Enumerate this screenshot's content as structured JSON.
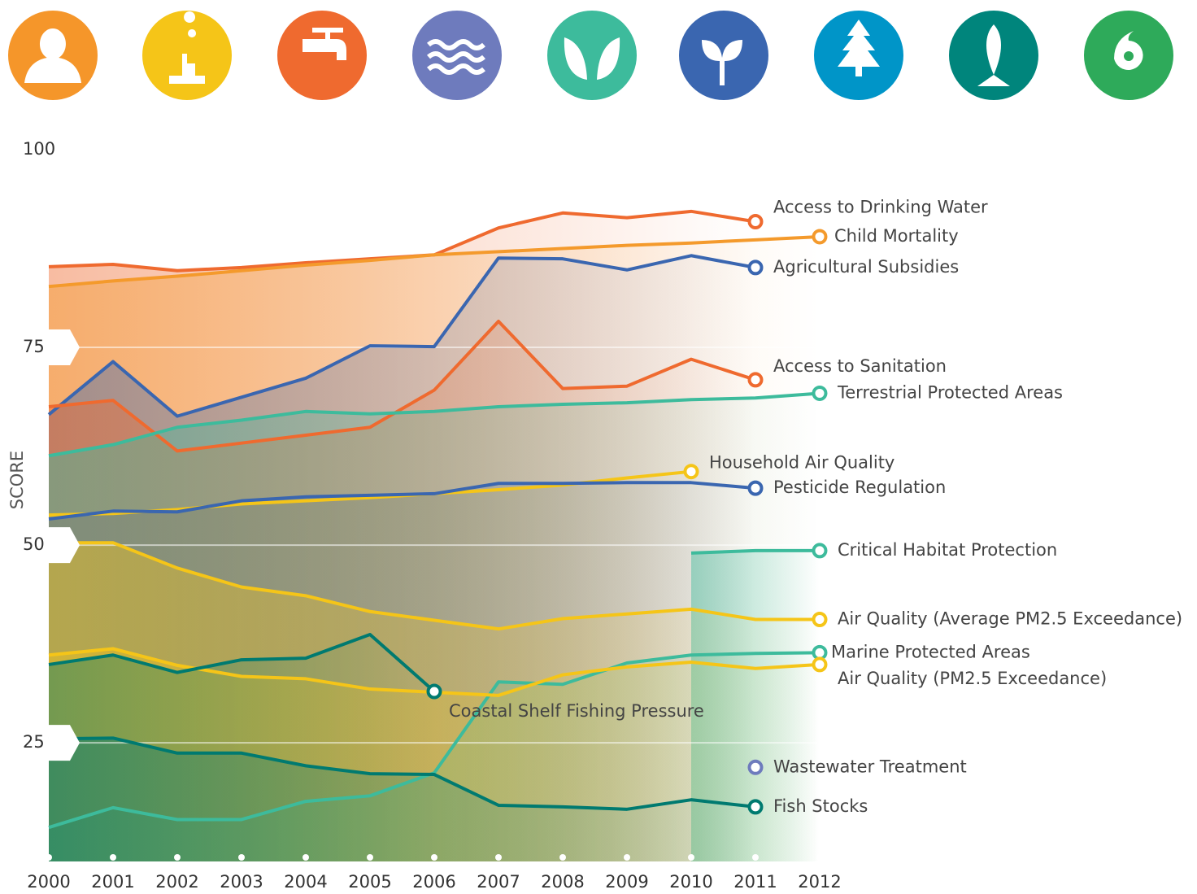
{
  "chart_data": {
    "type": "line",
    "y_label": "SCORE",
    "x": [
      2000,
      2001,
      2002,
      2003,
      2004,
      2005,
      2006,
      2007,
      2008,
      2009,
      2010,
      2011,
      2012
    ],
    "xlim": [
      2000,
      2012
    ],
    "ylim": [
      10,
      100
    ],
    "yticks": [
      25,
      50,
      75,
      100
    ],
    "grid": true,
    "series": [
      {
        "name": "Access to Drinking Water",
        "color": "#ef6a2f",
        "values": [
          85.2,
          85.5,
          84.7,
          85.1,
          85.7,
          86.2,
          86.7,
          90.1,
          92.0,
          91.4,
          92.2,
          90.9,
          null
        ]
      },
      {
        "name": "Child Mortality",
        "color": "#f49a2c",
        "values": [
          82.7,
          83.4,
          84.0,
          84.7,
          85.4,
          86.0,
          86.7,
          87.1,
          87.5,
          87.9,
          88.2,
          88.6,
          89.0
        ]
      },
      {
        "name": "Agricultural Subsidies",
        "color": "#3a66b0",
        "values": [
          66.5,
          73.2,
          66.3,
          68.7,
          71.1,
          75.2,
          75.1,
          86.3,
          86.2,
          84.8,
          86.6,
          85.1,
          null
        ]
      },
      {
        "name": "Access to Sanitation",
        "color": "#ef6a2f",
        "values": [
          67.5,
          68.3,
          61.9,
          62.9,
          63.9,
          64.9,
          69.6,
          78.3,
          69.8,
          70.1,
          73.5,
          70.9,
          null
        ]
      },
      {
        "name": "Terrestrial Protected Areas",
        "color": "#3dbb9c",
        "values": [
          61.3,
          62.7,
          64.9,
          65.8,
          66.9,
          66.6,
          66.9,
          67.5,
          67.8,
          68.0,
          68.4,
          68.6,
          69.2
        ]
      },
      {
        "name": "Household Air Quality",
        "color": "#f5c518",
        "values": [
          53.8,
          54.0,
          54.5,
          55.2,
          55.6,
          56.0,
          56.5,
          57.0,
          57.6,
          58.5,
          59.3,
          null,
          null
        ]
      },
      {
        "name": "Pesticide Regulation",
        "color": "#3a66b0",
        "values": [
          53.3,
          54.3,
          54.2,
          55.6,
          56.1,
          56.3,
          56.5,
          57.8,
          57.8,
          57.9,
          57.9,
          57.2,
          null
        ]
      },
      {
        "name": "Critical Habitat Protection",
        "color": "#3dbb9c",
        "values": [
          null,
          null,
          null,
          null,
          null,
          null,
          null,
          null,
          null,
          null,
          49.0,
          49.3,
          49.3
        ]
      },
      {
        "name": "Air Quality (Average PM2.5 Exceedance)",
        "color": "#f5c518",
        "values": [
          50.3,
          50.3,
          47.1,
          44.7,
          43.6,
          41.6,
          40.5,
          39.4,
          40.7,
          41.3,
          41.9,
          40.6,
          40.6
        ]
      },
      {
        "name": "Marine Protected Areas",
        "color": "#3dbb9c",
        "values": [
          14.3,
          16.8,
          15.3,
          15.3,
          17.6,
          18.3,
          21.2,
          32.7,
          32.4,
          35.1,
          36.1,
          36.3,
          36.4
        ]
      },
      {
        "name": "Air Quality (PM2.5 Exceedance)",
        "color": "#f5c518",
        "values": [
          36.1,
          36.9,
          34.8,
          33.4,
          33.1,
          31.8,
          31.4,
          31.0,
          33.6,
          34.6,
          35.2,
          34.4,
          34.9
        ]
      },
      {
        "name": "Coastal Shelf Fishing Pressure",
        "color": "#007a70",
        "values": [
          34.9,
          36.1,
          33.9,
          35.5,
          35.7,
          38.7,
          31.5,
          null,
          null,
          null,
          null,
          null,
          null
        ]
      },
      {
        "name": "Wastewater Treatment",
        "color": "#6e7bbd",
        "values": [
          null,
          null,
          null,
          null,
          null,
          null,
          null,
          null,
          null,
          null,
          null,
          21.9,
          null
        ]
      },
      {
        "name": "Fish Stocks",
        "color": "#007a70",
        "values": [
          25.5,
          25.6,
          23.7,
          23.7,
          22.1,
          21.1,
          21.0,
          17.1,
          16.9,
          16.6,
          17.8,
          16.9,
          null
        ]
      }
    ]
  }
}
